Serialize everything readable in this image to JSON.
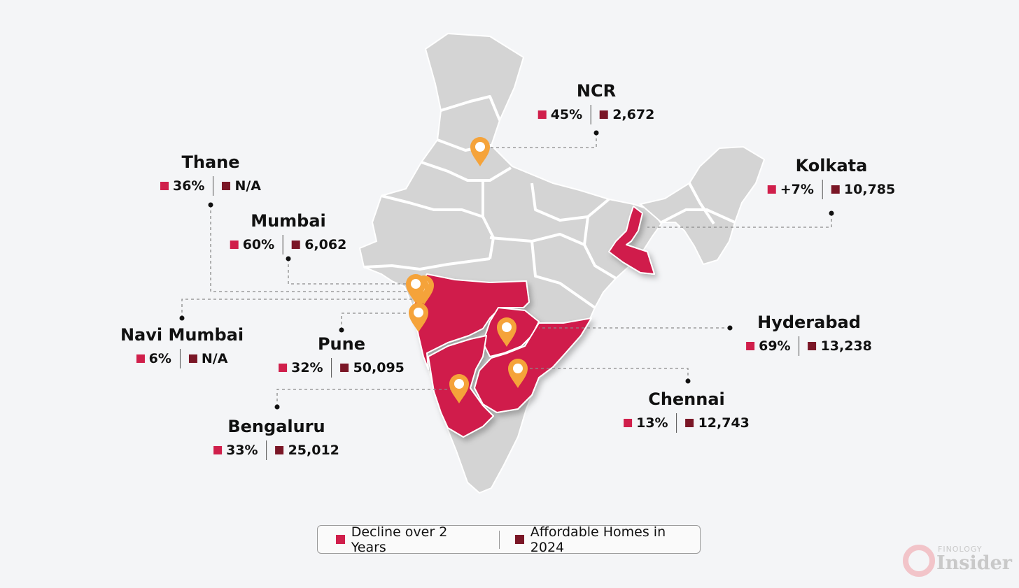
{
  "colors": {
    "background": "#f4f5f7",
    "land": "#d4d4d4",
    "highlight": "#d01f4b",
    "decline_marker": "#d01f4b",
    "homes_marker": "#7a1626",
    "pin": "#f5a33a"
  },
  "cities": [
    {
      "name": "NCR",
      "decline": "45%",
      "homes": "2,672"
    },
    {
      "name": "Thane",
      "decline": "36%",
      "homes": "N/A"
    },
    {
      "name": "Kolkata",
      "decline": "+7%",
      "homes": "10,785"
    },
    {
      "name": "Mumbai",
      "decline": "60%",
      "homes": "6,062"
    },
    {
      "name": "Hyderabad",
      "decline": "69%",
      "homes": "13,238"
    },
    {
      "name": "Navi Mumbai",
      "decline": "6%",
      "homes": "N/A"
    },
    {
      "name": "Pune",
      "decline": "32%",
      "homes": "50,095"
    },
    {
      "name": "Chennai",
      "decline": "13%",
      "homes": "12,743"
    },
    {
      "name": "Bengaluru",
      "decline": "33%",
      "homes": "25,012"
    }
  ],
  "legend": {
    "decline_label": "Decline over 2 Years",
    "homes_label": "Affordable Homes in 2024"
  },
  "brand": {
    "small": "FINOLOGY",
    "big": "Insider"
  }
}
